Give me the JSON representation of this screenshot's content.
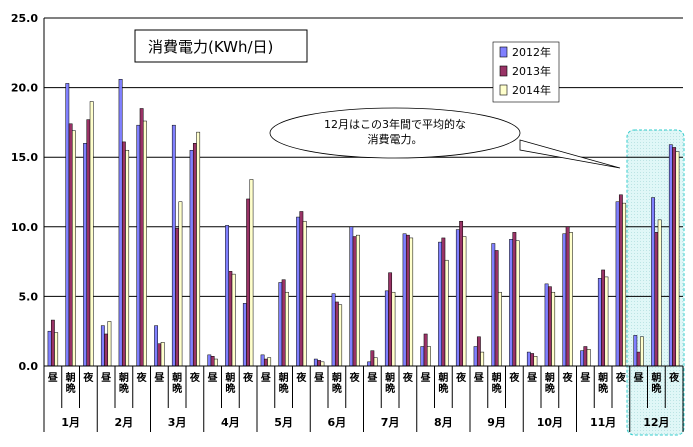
{
  "chart_data": {
    "type": "bar",
    "title": "消費電力(KWh/日)",
    "ylim": [
      0,
      25
    ],
    "yticks": [
      "0.0",
      "5.0",
      "10.0",
      "15.0",
      "20.0",
      "25.0"
    ],
    "grid": true,
    "legend_position": "top-right",
    "period_labels": [
      "昼",
      "朝晩",
      "夜"
    ],
    "months": [
      "1月",
      "2月",
      "3月",
      "4月",
      "5月",
      "6月",
      "7月",
      "8月",
      "9月",
      "10月",
      "11月",
      "12月"
    ],
    "annotation": {
      "lines": [
        "12月はこの3年間で平均的な",
        "消費電力。"
      ]
    },
    "series": [
      {
        "name": "2012年",
        "color": "#8080ff",
        "values": [
          2.5,
          20.3,
          16.0,
          2.9,
          20.6,
          17.3,
          2.9,
          17.3,
          15.5,
          0.8,
          10.1,
          4.5,
          0.8,
          6.0,
          10.7,
          0.5,
          5.2,
          10.0,
          0.3,
          5.4,
          9.5,
          1.4,
          8.9,
          9.8,
          1.4,
          8.8,
          9.1,
          1.0,
          5.9,
          9.5,
          1.1,
          6.3,
          11.8,
          2.2,
          12.1,
          15.9
        ]
      },
      {
        "name": "2013年",
        "color": "#993366",
        "values": [
          3.3,
          17.4,
          17.7,
          2.3,
          16.1,
          18.5,
          1.6,
          9.9,
          16.0,
          0.7,
          6.8,
          12.0,
          0.5,
          6.2,
          11.1,
          0.4,
          4.6,
          9.3,
          1.1,
          6.7,
          9.4,
          2.3,
          9.2,
          10.4,
          2.1,
          8.3,
          9.6,
          0.9,
          5.7,
          10.0,
          1.4,
          6.9,
          12.3,
          1.0,
          9.6,
          15.7
        ]
      },
      {
        "name": "2014年",
        "color": "#ffffcc",
        "values": [
          2.4,
          16.9,
          19.0,
          3.2,
          15.5,
          17.6,
          1.7,
          11.8,
          16.8,
          0.5,
          6.6,
          13.4,
          0.6,
          5.3,
          10.4,
          0.3,
          4.4,
          9.4,
          0.6,
          5.3,
          9.2,
          1.4,
          7.6,
          9.3,
          1.0,
          5.3,
          9.0,
          0.7,
          5.3,
          9.6,
          1.2,
          6.4,
          11.7,
          2.1,
          10.5,
          15.4
        ]
      }
    ]
  }
}
